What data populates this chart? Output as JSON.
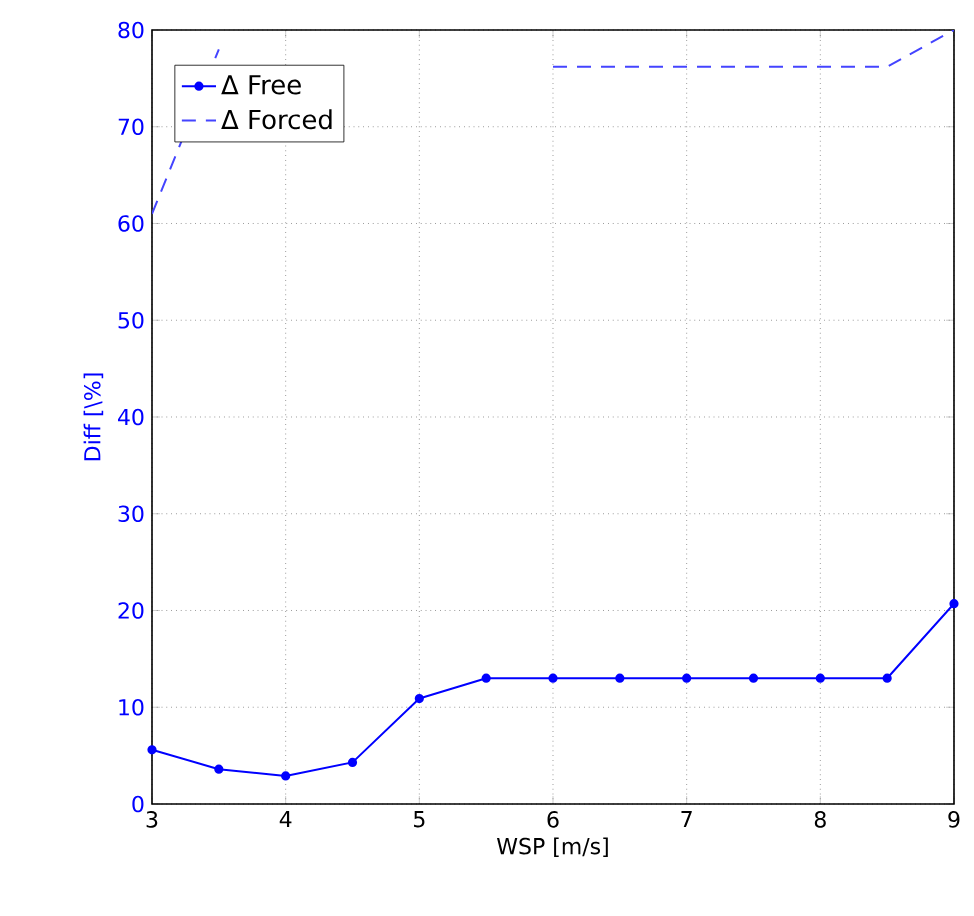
{
  "chart_data": {
    "type": "line",
    "xlabel": "WSP [m/s]",
    "ylabel": "Diff [\\%]",
    "x": [
      3,
      3.5,
      4,
      4.5,
      5,
      5.5,
      6,
      6.5,
      7,
      7.5,
      8,
      8.5,
      9
    ],
    "series": [
      {
        "name": "Δ Free",
        "color": "#0000ff",
        "marker": "circle",
        "line_style": "solid",
        "values": [
          5.6,
          3.6,
          2.9,
          4.3,
          10.9,
          13.0,
          13.0,
          13.0,
          13.0,
          13.0,
          13.0,
          13.0,
          20.7
        ]
      },
      {
        "name": "Δ Forced",
        "color": "#4444ff",
        "marker": "none",
        "line_style": "dashed",
        "values": [
          61,
          78,
          null,
          null,
          null,
          null,
          76.2,
          76.2,
          76.2,
          76.2,
          76.2,
          76.2,
          80
        ]
      }
    ],
    "xlim": [
      3,
      9
    ],
    "ylim": [
      0,
      80
    ],
    "xticks": [
      3,
      4,
      5,
      6,
      7,
      8,
      9
    ],
    "yticks": [
      0,
      10,
      20,
      30,
      40,
      50,
      60,
      70,
      80
    ],
    "grid": true,
    "legend": "top left"
  }
}
